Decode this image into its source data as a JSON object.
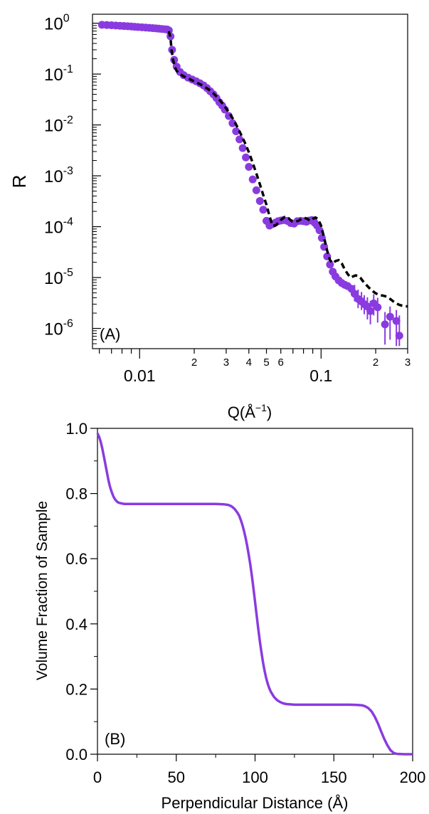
{
  "chart_data": [
    {
      "type": "scatter",
      "panel_label": "(A)",
      "ylabel": "R",
      "xlabel_main": "Q(Å",
      "xlabel_exp": "−1",
      "xlabel_close": ")",
      "xscale": "log",
      "yscale": "log",
      "xlim": [
        0.0055,
        0.3
      ],
      "ylim": [
        4e-07,
        1.5
      ],
      "y_ticks": [
        {
          "value": 1,
          "exp": "0"
        },
        {
          "value": 0.1,
          "exp": "-1"
        },
        {
          "value": 0.01,
          "exp": "-2"
        },
        {
          "value": 0.001,
          "exp": "-3"
        },
        {
          "value": 0.0001,
          "exp": "-4"
        },
        {
          "value": 1e-05,
          "exp": "-5"
        },
        {
          "value": 1e-06,
          "exp": "-6"
        }
      ],
      "y_tick_base": "10",
      "x_major_ticks": [
        {
          "value": 0.01,
          "label": "0.01"
        },
        {
          "value": 0.1,
          "label": "0.1"
        }
      ],
      "x_minor_labels": [
        {
          "value": 0.02,
          "label": "2"
        },
        {
          "value": 0.03,
          "label": "3"
        },
        {
          "value": 0.04,
          "label": "4"
        },
        {
          "value": 0.05,
          "label": "5"
        },
        {
          "value": 0.06,
          "label": "6"
        },
        {
          "value": 0.2,
          "label": "2"
        },
        {
          "value": 0.3,
          "label": "3"
        }
      ],
      "data_color": "#8a3be0",
      "fit_color": "#000000",
      "series": [
        {
          "style": "markers",
          "x": [
            0.0062,
            0.0066,
            0.007,
            0.0074,
            0.0078,
            0.0082,
            0.0086,
            0.009,
            0.0094,
            0.0098,
            0.0103,
            0.0108,
            0.0113,
            0.0118,
            0.0123,
            0.0128,
            0.0133,
            0.0138,
            0.0142,
            0.0145,
            0.0148,
            0.0151,
            0.0155,
            0.016,
            0.0167,
            0.0175,
            0.0185,
            0.0195,
            0.0205,
            0.0215,
            0.0225,
            0.0235,
            0.0245,
            0.0255,
            0.0265,
            0.0275,
            0.0285,
            0.0295,
            0.031,
            0.0325,
            0.034,
            0.0355,
            0.037,
            0.0385,
            0.04,
            0.042,
            0.044,
            0.046,
            0.048,
            0.05,
            0.052,
            0.054,
            0.056,
            0.058,
            0.06,
            0.062,
            0.065,
            0.068,
            0.071,
            0.074,
            0.077,
            0.08,
            0.083,
            0.086,
            0.089,
            0.092,
            0.095,
            0.098,
            0.101,
            0.104,
            0.108,
            0.112,
            0.116,
            0.12,
            0.125,
            0.13,
            0.135,
            0.14,
            0.147,
            0.153,
            0.16,
            0.167,
            0.173,
            0.18,
            0.187,
            0.195,
            0.205,
            0.225,
            0.24,
            0.26,
            0.27
          ],
          "y": [
            0.93,
            0.92,
            0.91,
            0.9,
            0.89,
            0.88,
            0.87,
            0.86,
            0.85,
            0.84,
            0.83,
            0.82,
            0.81,
            0.8,
            0.79,
            0.78,
            0.77,
            0.76,
            0.75,
            0.72,
            0.55,
            0.3,
            0.19,
            0.14,
            0.11,
            0.095,
            0.085,
            0.078,
            0.072,
            0.066,
            0.06,
            0.053,
            0.046,
            0.04,
            0.034,
            0.028,
            0.024,
            0.02,
            0.015,
            0.0108,
            0.0075,
            0.0052,
            0.0035,
            0.0023,
            0.0015,
            0.00085,
            0.00052,
            0.00032,
            0.000215,
            0.00013,
            0.000105,
            0.000112,
            0.00012,
            0.000128,
            0.000132,
            0.000135,
            0.00013,
            0.000118,
            0.000115,
            0.000128,
            0.00013,
            0.000128,
            0.000125,
            0.000132,
            0.000135,
            0.00012,
            0.000105,
            8.5e-05,
            6e-05,
            4e-05,
            2.6e-05,
            1.8e-05,
            1.3e-05,
            1.05e-05,
            8.8e-06,
            7.8e-06,
            7.2e-06,
            6.8e-06,
            6e-06,
            4.8e-06,
            3.8e-06,
            3.4e-06,
            3e-06,
            2.7e-06,
            2.2e-06,
            3.1e-06,
            2.6e-06,
            1.2e-06,
            1.7e-06,
            1.4e-06,
            7.2e-07
          ],
          "yerr_lo": [
            null,
            null,
            null,
            null,
            null,
            null,
            null,
            null,
            null,
            null,
            null,
            null,
            null,
            null,
            null,
            null,
            null,
            null,
            null,
            null,
            null,
            null,
            null,
            null,
            null,
            null,
            null,
            null,
            null,
            null,
            null,
            null,
            null,
            null,
            null,
            null,
            null,
            null,
            null,
            null,
            null,
            null,
            null,
            null,
            null,
            null,
            null,
            null,
            null,
            null,
            null,
            null,
            null,
            null,
            null,
            null,
            null,
            null,
            null,
            null,
            null,
            null,
            null,
            null,
            null,
            null,
            null,
            null,
            null,
            null,
            null,
            null,
            null,
            null,
            null,
            null,
            null,
            null,
            null,
            3.4e-06,
            2.5e-06,
            2.3e-06,
            1.9e-06,
            1.5e-06,
            1.2e-06,
            1.8e-06,
            1.3e-06,
            4.8e-07,
            6e-07,
            4.5e-07,
            4.5e-07
          ],
          "yerr_hi": [
            null,
            null,
            null,
            null,
            null,
            null,
            null,
            null,
            null,
            null,
            null,
            null,
            null,
            null,
            null,
            null,
            null,
            null,
            null,
            null,
            null,
            null,
            null,
            null,
            null,
            null,
            null,
            null,
            null,
            null,
            null,
            null,
            null,
            null,
            null,
            null,
            null,
            null,
            null,
            null,
            null,
            null,
            null,
            null,
            null,
            null,
            null,
            null,
            null,
            null,
            null,
            null,
            null,
            null,
            null,
            null,
            null,
            null,
            null,
            null,
            null,
            null,
            null,
            null,
            null,
            null,
            null,
            null,
            null,
            null,
            null,
            null,
            null,
            null,
            null,
            null,
            null,
            null,
            null,
            7.2e-06,
            5.8e-06,
            5.2e-06,
            4.5e-06,
            4.1e-06,
            3.5e-06,
            4.7e-06,
            4e-06,
            2.1e-06,
            2.7e-06,
            2.3e-06,
            1.8e-06
          ]
        },
        {
          "style": "dashed-line",
          "x": [
            0.0145,
            0.0148,
            0.015,
            0.0153,
            0.0156,
            0.016,
            0.0167,
            0.0175,
            0.0185,
            0.0195,
            0.021,
            0.0225,
            0.024,
            0.0255,
            0.027,
            0.0285,
            0.03,
            0.032,
            0.034,
            0.036,
            0.038,
            0.04,
            0.042,
            0.044,
            0.046,
            0.048,
            0.05,
            0.052,
            0.054,
            0.056,
            0.058,
            0.06,
            0.063,
            0.066,
            0.069,
            0.072,
            0.075,
            0.078,
            0.081,
            0.084,
            0.087,
            0.09,
            0.093,
            0.096,
            0.1,
            0.104,
            0.108,
            0.112,
            0.116,
            0.12,
            0.125,
            0.13,
            0.135,
            0.14,
            0.145,
            0.15,
            0.155,
            0.16,
            0.165,
            0.17,
            0.18,
            0.19,
            0.2,
            0.21,
            0.22,
            0.23,
            0.24,
            0.25,
            0.26,
            0.27,
            0.28,
            0.3
          ],
          "y": [
            0.7,
            0.5,
            0.3,
            0.19,
            0.14,
            0.115,
            0.1,
            0.09,
            0.082,
            0.075,
            0.066,
            0.058,
            0.05,
            0.042,
            0.034,
            0.027,
            0.021,
            0.015,
            0.0102,
            0.0068,
            0.0045,
            0.0029,
            0.0018,
            0.0011,
            0.00068,
            0.00042,
            0.00027,
            0.00016,
            0.000105,
            0.000105,
            0.000118,
            0.000135,
            0.000155,
            0.000148,
            0.000128,
            0.000125,
            0.00013,
            0.000143,
            0.00015,
            0.000142,
            0.00013,
            0.000142,
            0.000152,
            0.000142,
            0.000105,
            6e-05,
            3.4e-05,
            2.2e-05,
            1.9e-05,
            2.1e-05,
            2.2e-05,
            1.9e-05,
            1.45e-05,
            1.18e-05,
            1e-05,
            1.05e-05,
            1.1e-05,
            1.08e-05,
            9.8e-06,
            8.5e-06,
            6.8e-06,
            5.6e-06,
            4.9e-06,
            4.5e-06,
            4.4e-06,
            4.2e-06,
            3.8e-06,
            3.4e-06,
            3.1e-06,
            2.9e-06,
            2.8e-06,
            2.7e-06
          ]
        }
      ]
    },
    {
      "type": "line",
      "panel_label": "(B)",
      "xlabel": "Perpendicular Distance (Å)",
      "ylabel": "Volume Fraction of Sample",
      "xlim": [
        0,
        200
      ],
      "ylim": [
        0,
        1.0
      ],
      "x_ticks": [
        0,
        50,
        100,
        150,
        200
      ],
      "x_tick_labels": [
        "0",
        "50",
        "100",
        "150",
        "200"
      ],
      "y_ticks": [
        0,
        0.2,
        0.4,
        0.6,
        0.8,
        1.0
      ],
      "y_tick_labels": [
        "0.0",
        "0.2",
        "0.4",
        "0.6",
        "0.8",
        "1.0"
      ],
      "line_color": "#8a3be0",
      "series": [
        {
          "x": [
            0,
            1,
            2,
            3,
            4,
            5,
            6,
            7,
            8,
            9,
            10,
            11,
            12,
            13,
            14,
            15,
            16,
            17,
            18,
            19,
            20,
            25,
            30,
            40,
            50,
            60,
            70,
            75,
            80,
            83,
            85,
            87,
            89,
            90,
            91,
            92,
            93,
            94,
            95,
            96,
            97,
            98,
            99,
            100,
            101,
            102,
            103,
            104,
            105,
            106,
            107,
            108,
            109,
            110,
            112,
            114,
            116,
            118,
            120,
            125,
            130,
            140,
            150,
            160,
            165,
            168,
            170,
            172,
            174,
            176,
            178,
            180,
            182,
            184,
            186,
            188,
            190,
            195,
            200
          ],
          "y": [
            0.985,
            0.975,
            0.96,
            0.94,
            0.915,
            0.89,
            0.865,
            0.84,
            0.82,
            0.805,
            0.792,
            0.783,
            0.777,
            0.773,
            0.771,
            0.77,
            0.769,
            0.768,
            0.768,
            0.768,
            0.768,
            0.768,
            0.768,
            0.768,
            0.768,
            0.768,
            0.768,
            0.768,
            0.767,
            0.765,
            0.761,
            0.753,
            0.74,
            0.731,
            0.718,
            0.703,
            0.685,
            0.664,
            0.64,
            0.612,
            0.581,
            0.546,
            0.508,
            0.468,
            0.427,
            0.387,
            0.349,
            0.314,
            0.283,
            0.257,
            0.235,
            0.217,
            0.203,
            0.192,
            0.176,
            0.166,
            0.16,
            0.156,
            0.154,
            0.152,
            0.152,
            0.152,
            0.152,
            0.152,
            0.151,
            0.15,
            0.147,
            0.141,
            0.131,
            0.115,
            0.094,
            0.07,
            0.047,
            0.027,
            0.012,
            0.004,
            0.001,
            0.0,
            0.0
          ]
        }
      ]
    }
  ]
}
